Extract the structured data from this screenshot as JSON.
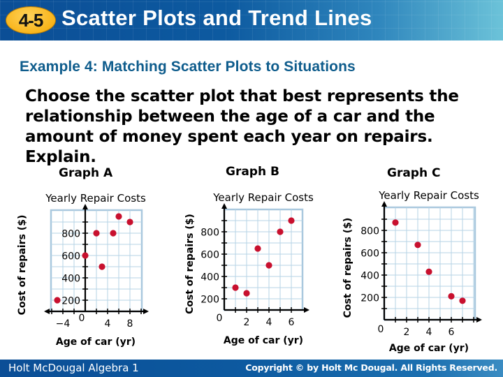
{
  "header": {
    "lesson_number": "4-5",
    "title": "Scatter Plots and Trend Lines",
    "colors": {
      "bar_dark": "#0b4e96",
      "bar_light": "#6cc3d9",
      "badge": "#f8b41a"
    }
  },
  "subtitle": "Example 4: Matching Scatter Plots to Situations",
  "question": {
    "lines": [
      "Choose the scatter plot that best represents the",
      "relationship between the age of a car and the",
      "amount of money spent each year on repairs.",
      "Explain."
    ]
  },
  "graphs": {
    "a": {
      "label": "Graph A"
    },
    "b": {
      "label": "Graph B"
    },
    "c": {
      "label": "Graph C"
    }
  },
  "chart_data": [
    {
      "type": "scatter",
      "name": "Graph A",
      "title": "Yearly Repair Costs",
      "xlabel": "Age of car (yr)",
      "ylabel": "Cost of repairs ($)",
      "x_ticks": [
        -4,
        0,
        4,
        8
      ],
      "y_ticks": [
        200,
        400,
        600,
        800
      ],
      "xlim": [
        -6,
        10
      ],
      "ylim": [
        100,
        1000
      ],
      "grid": true,
      "point_color": "#c8102e",
      "points": [
        {
          "x": -5,
          "y": 200
        },
        {
          "x": 0,
          "y": 600
        },
        {
          "x": 2,
          "y": 800
        },
        {
          "x": 3,
          "y": 500
        },
        {
          "x": 5,
          "y": 800
        },
        {
          "x": 6,
          "y": 950
        },
        {
          "x": 8,
          "y": 900
        }
      ]
    },
    {
      "type": "scatter",
      "name": "Graph B",
      "title": "Yearly Repair Costs",
      "xlabel": "Age of car (yr)",
      "ylabel": "Cost of repairs ($)",
      "x_ticks": [
        0,
        2,
        4,
        6
      ],
      "y_ticks": [
        200,
        400,
        600,
        800
      ],
      "xlim": [
        0,
        7
      ],
      "ylim": [
        100,
        1000
      ],
      "grid": true,
      "point_color": "#c8102e",
      "points": [
        {
          "x": 1,
          "y": 300
        },
        {
          "x": 2,
          "y": 250
        },
        {
          "x": 3,
          "y": 650
        },
        {
          "x": 4,
          "y": 500
        },
        {
          "x": 5,
          "y": 800
        },
        {
          "x": 6,
          "y": 900
        }
      ]
    },
    {
      "type": "scatter",
      "name": "Graph C",
      "title": "Yearly Repair Costs",
      "xlabel": "Age of car (yr)",
      "ylabel": "Cost of repairs ($)",
      "x_ticks": [
        0,
        2,
        4,
        6
      ],
      "y_ticks": [
        200,
        400,
        600,
        800
      ],
      "xlim": [
        0,
        8
      ],
      "ylim": [
        0,
        1000
      ],
      "grid": true,
      "point_color": "#c8102e",
      "points": [
        {
          "x": 1,
          "y": 870
        },
        {
          "x": 3,
          "y": 670
        },
        {
          "x": 4,
          "y": 430
        },
        {
          "x": 6,
          "y": 210
        },
        {
          "x": 7,
          "y": 170
        }
      ]
    }
  ],
  "footer": {
    "left": "Holt McDougal Algebra 1",
    "right": "Copyright © by Holt Mc Dougal. All Rights Reserved."
  }
}
